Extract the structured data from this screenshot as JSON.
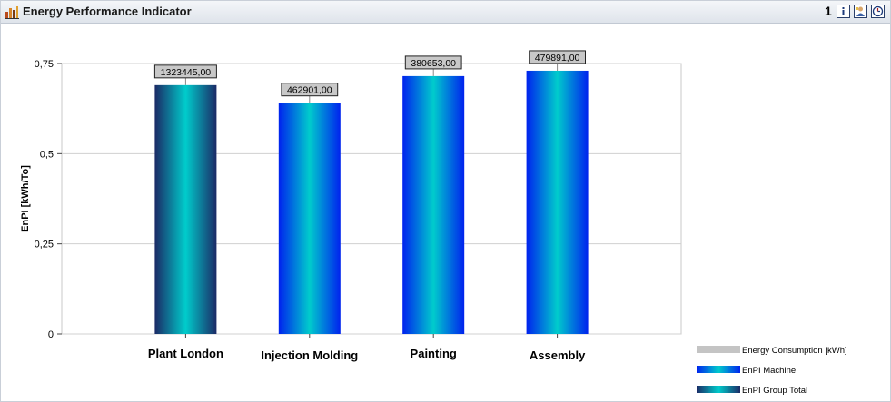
{
  "window": {
    "title": "Energy Performance Indicator",
    "page_number": "1",
    "icons": [
      "chart-icon",
      "info-icon",
      "user-icon",
      "clock-icon"
    ]
  },
  "chart_data": {
    "type": "bar",
    "categories": [
      "Plant London",
      "Injection Molding",
      "Painting",
      "Assembly"
    ],
    "series": [
      {
        "name": "EnPI Group Total",
        "values": [
          0.69,
          null,
          null,
          null
        ],
        "color": "#00c4cc"
      },
      {
        "name": "EnPI Machine",
        "values": [
          null,
          0.64,
          0.715,
          0.73
        ],
        "color": "#0022ee"
      }
    ],
    "data_labels": [
      "1323445,00",
      "462901,00",
      "380653,00",
      "479891,00"
    ],
    "ylabel": "EnPI [kWh/To]",
    "ylim": [
      0,
      0.75
    ],
    "yticks": [
      0,
      0.25,
      0.5,
      0.75
    ],
    "ytick_labels": [
      "0",
      "0,25",
      "0,5",
      "0,75"
    ],
    "grid": true,
    "legend": {
      "position": "bottom-right",
      "entries": [
        {
          "label": "Energy Consumption [kWh]",
          "color": "#c4c4c4"
        },
        {
          "label": "EnPI Machine",
          "color": "#0022ee"
        },
        {
          "label": "EnPI Group Total",
          "color": "#00c4cc"
        }
      ]
    }
  }
}
